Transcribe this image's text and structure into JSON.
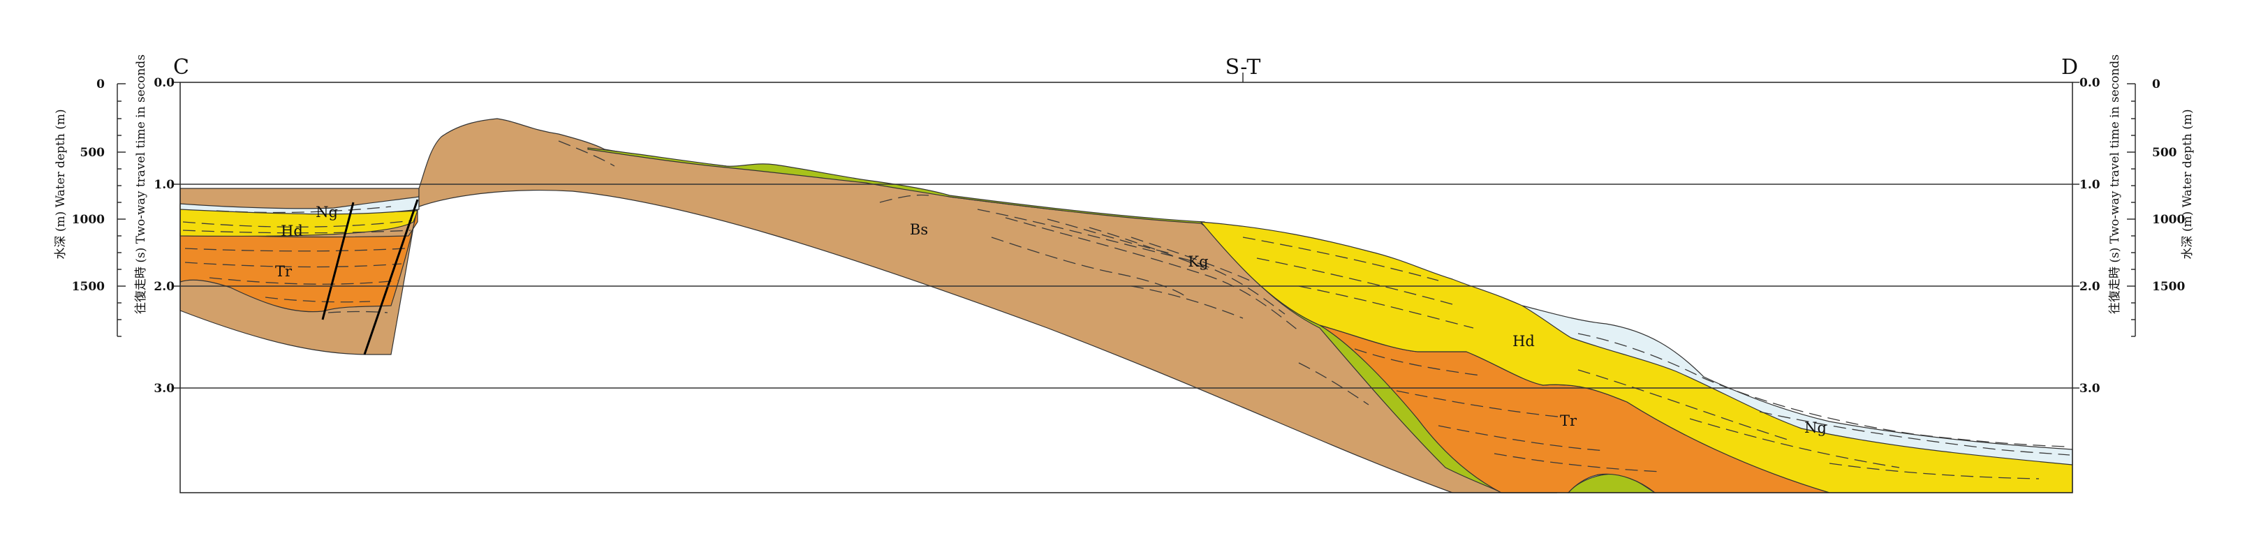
{
  "section": {
    "left_end_label": "C",
    "right_end_label": "D",
    "crossing_label": "S-T"
  },
  "left_axes": {
    "water_depth_title": "水深 (m)   Water depth (m)",
    "twt_title": "往復走時 (s)   Two-way travel time in seconds",
    "depth_ticks": [
      "0",
      "500",
      "1000",
      "1500"
    ],
    "twt_ticks": [
      "0.0",
      "1.0",
      "2.0",
      "3.0"
    ]
  },
  "right_axes": {
    "water_depth_title": "水深 (m)   Water depth (m)",
    "twt_title": "往復走時 (s) Two-way travel time in seconds",
    "depth_ticks": [
      "0",
      "500",
      "1000",
      "1500"
    ],
    "twt_ticks": [
      "0.0",
      "1.0",
      "2.0",
      "3.0"
    ]
  },
  "units": {
    "ng": {
      "label": "Ng",
      "color": "#e3f1f6"
    },
    "hd": {
      "label": "Hd",
      "color": "#f4dc0c"
    },
    "tr": {
      "label": "Tr",
      "color": "#ee8a26"
    },
    "kg": {
      "label": "Kg",
      "color": "#a8c21a"
    },
    "bs": {
      "label": "Bs",
      "color": "#d2a06a"
    }
  }
}
